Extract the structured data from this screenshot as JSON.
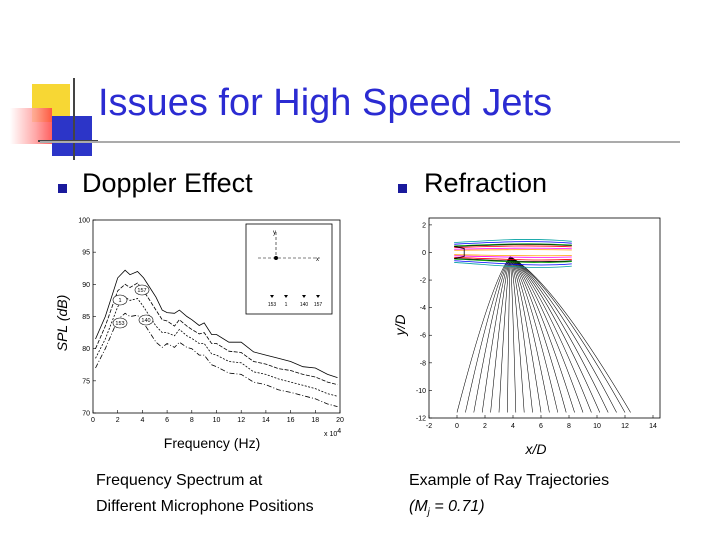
{
  "slide": {
    "title": "Issues for High Speed Jets",
    "left_heading": "Doppler Effect",
    "right_heading": "Refraction",
    "left_caption_line1": "Frequency Spectrum at",
    "left_caption_line2": "Different Microphone Positions",
    "right_caption_line1": "Example of Ray Trajectories",
    "right_caption_line2_pre": "(M",
    "right_caption_line2_sub": "j",
    "right_caption_line2_post": " = 0.71)"
  },
  "colors": {
    "title": "#2b2bd2",
    "bullet": "#1a1a9c",
    "deco_yellow": "#f7d734",
    "deco_blue": "#2c35c8",
    "deco_red": "#ff4444",
    "rule": "#ababab"
  },
  "chart_data": [
    {
      "type": "line",
      "xlabel": "Frequency (Hz)",
      "ylabel": "SPL (dB)",
      "x_multiplier_label": "x 10",
      "x_multiplier_exp": "4",
      "x_ticks": [
        "0",
        "2",
        "4",
        "6",
        "8",
        "10",
        "12",
        "14",
        "16",
        "18",
        "20"
      ],
      "y_ticks": [
        "70",
        "75",
        "80",
        "85",
        "90",
        "95",
        "100"
      ],
      "xlim": [
        0,
        20
      ],
      "ylim": [
        70,
        100
      ],
      "curve_labels": [
        "1",
        "140",
        "153",
        "157"
      ],
      "inset": {
        "axis_labels": [
          "y",
          "x"
        ],
        "mic_labels": [
          "153",
          "1",
          "140",
          "157"
        ]
      },
      "series": [
        {
          "x": [
            0.2,
            1,
            2,
            2.6,
            3,
            3.6,
            4.1,
            4.6,
            5.1,
            5.6,
            6,
            6.6,
            7,
            7.6,
            8,
            8.6,
            9,
            9.6,
            10,
            11,
            12,
            13,
            14,
            15,
            16,
            17,
            18,
            19,
            19.8
          ],
          "values": [
            81.5,
            85,
            91,
            92.2,
            91.5,
            92,
            91,
            89.5,
            88,
            86,
            85.6,
            85.5,
            86,
            85,
            84.5,
            83.6,
            84,
            82.2,
            82.2,
            81,
            81,
            79.5,
            79,
            78.5,
            78,
            77.2,
            77,
            76,
            75.5
          ]
        },
        {
          "x": [
            0.2,
            1,
            2,
            2.6,
            3,
            3.6,
            4.1,
            4.6,
            5.1,
            5.6,
            6,
            6.6,
            7,
            7.6,
            8,
            8.6,
            9,
            9.6,
            10,
            11,
            12,
            13,
            14,
            15,
            16,
            17,
            18,
            19,
            19.8
          ],
          "values": [
            80,
            83.5,
            89,
            90,
            89.5,
            90.2,
            89,
            87.5,
            86,
            84.5,
            84.3,
            83.5,
            84.5,
            83.5,
            83,
            82.3,
            82.5,
            80.8,
            80.8,
            79.6,
            79.4,
            78,
            77.6,
            76.9,
            76.6,
            76,
            75.6,
            74.8,
            74.4
          ]
        },
        {
          "x": [
            0.2,
            1,
            2,
            2.6,
            3,
            3.6,
            4.1,
            4.6,
            5.1,
            5.6,
            6,
            6.6,
            7,
            7.6,
            8,
            8.6,
            9,
            9.6,
            10,
            11,
            12,
            13,
            14,
            15,
            16,
            17,
            18,
            19,
            19.8
          ],
          "values": [
            78.5,
            81.5,
            86.5,
            88,
            87.5,
            87.8,
            86.5,
            85,
            83.5,
            82.5,
            82.5,
            82,
            83,
            82,
            81.6,
            80.8,
            80.8,
            79.2,
            79,
            78,
            77.8,
            76.4,
            76,
            75.3,
            74.8,
            74.3,
            73.8,
            73,
            72.6
          ]
        },
        {
          "x": [
            0.2,
            1,
            2,
            2.6,
            3,
            3.6,
            4.1,
            4.6,
            5.1,
            5.6,
            6,
            6.6,
            7,
            7.6,
            8,
            8.6,
            9,
            9.6,
            10,
            11,
            12,
            13,
            14,
            15,
            16,
            17,
            18,
            19,
            19.8
          ],
          "values": [
            77,
            80,
            84.5,
            85.5,
            85,
            85.2,
            84,
            82.5,
            81,
            80.2,
            80.8,
            80.2,
            81,
            80.2,
            80,
            79,
            79,
            77.5,
            77.2,
            76.2,
            76,
            74.8,
            74.4,
            73.6,
            73.2,
            72.7,
            72.2,
            71.4,
            71
          ]
        }
      ]
    },
    {
      "type": "line",
      "xlabel": "x/D",
      "ylabel": "y/D",
      "x_ticks": [
        "-2",
        "0",
        "2",
        "4",
        "6",
        "8",
        "10",
        "12",
        "14"
      ],
      "y_ticks": [
        "2",
        "0",
        "-2",
        "-4",
        "-6",
        "-8",
        "-10",
        "-12"
      ],
      "xlim": [
        -2,
        14.5
      ],
      "ylim": [
        -12,
        2.5
      ],
      "ray_source": [
        3.8,
        -0.3
      ],
      "ray_endpoints_x": [
        0,
        0.6,
        1.2,
        1.8,
        2.4,
        3.0,
        3.6,
        4.2,
        4.8,
        5.4,
        6.0,
        6.6,
        7.2,
        7.8,
        8.4,
        9.0,
        9.6,
        10.2,
        10.8,
        11.4,
        12.0,
        12.4
      ],
      "ray_end_y": -11.6,
      "jet_contours": [
        {
          "color": "#000000",
          "halfwidth": 0.55
        },
        {
          "color": "#00a0a0",
          "halfwidth": 0.9
        },
        {
          "color": "#0000ff",
          "halfwidth": 0.75
        },
        {
          "color": "#00a000",
          "halfwidth": 0.6
        },
        {
          "color": "#ff0000",
          "halfwidth": 0.45
        },
        {
          "color": "#ff00ff",
          "halfwidth": 0.3
        },
        {
          "color": "#ffa000",
          "halfwidth": 0.2
        }
      ]
    }
  ]
}
